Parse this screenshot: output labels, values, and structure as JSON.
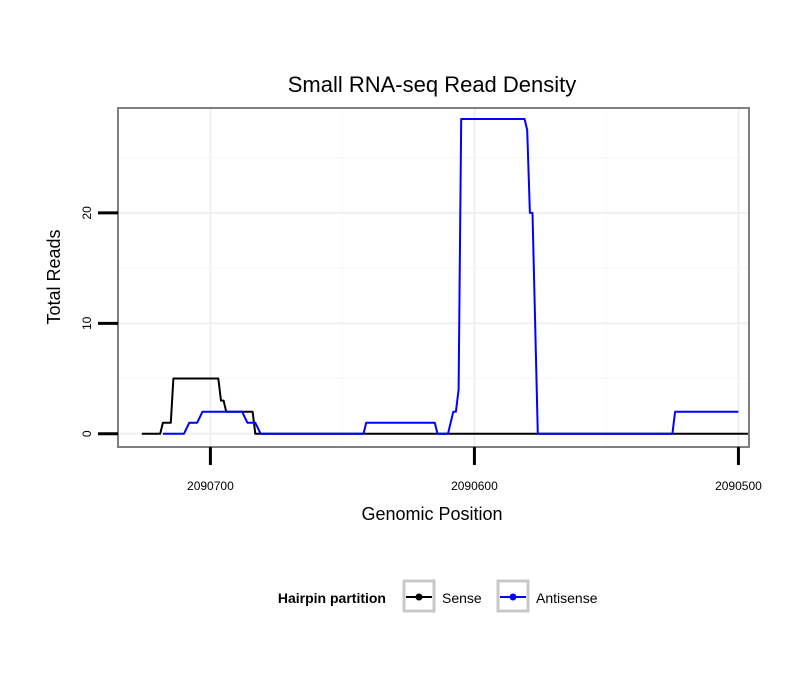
{
  "chart_data": {
    "type": "line",
    "title": "Small RNA-seq Read Density",
    "xlabel": "Genomic Position",
    "ylabel": "Total Reads",
    "x_reversed": true,
    "xlim": [
      2090735,
      2090496
    ],
    "ylim": [
      -1.2,
      29.5
    ],
    "x_ticks": [
      2090700,
      2090600,
      2090500
    ],
    "x_tick_labels": [
      "2090700",
      "2090600",
      "2090500"
    ],
    "y_ticks": [
      0,
      10,
      20
    ],
    "y_tick_labels": [
      "0",
      "10",
      "20"
    ],
    "grid": true,
    "legend": {
      "title": "Hairpin partition",
      "position": "bottom",
      "entries": [
        "Sense",
        "Antisense"
      ]
    },
    "series": [
      {
        "name": "Sense",
        "color": "#000000",
        "x": [
          2090726,
          2090719,
          2090718,
          2090715,
          2090714,
          2090710,
          2090709,
          2090697,
          2090696,
          2090695,
          2090694,
          2090690,
          2090689,
          2090684,
          2090683,
          2090580,
          2090496
        ],
        "y": [
          0,
          0,
          1,
          1,
          5,
          5,
          5,
          5,
          3,
          3,
          2,
          2,
          2,
          2,
          0,
          0,
          0
        ]
      },
      {
        "name": "Antisense",
        "color": "#0000ff",
        "x": [
          2090718,
          2090710,
          2090708,
          2090705,
          2090703,
          2090688,
          2090686,
          2090683,
          2090681,
          2090642,
          2090641,
          2090615,
          2090614,
          2090610,
          2090608,
          2090607,
          2090606,
          2090605,
          2090604,
          2090581,
          2090580,
          2090579,
          2090578,
          2090576,
          2090575,
          2090525,
          2090524,
          2090500
        ],
        "y": [
          0,
          0,
          1,
          1,
          2,
          2,
          1,
          1,
          0,
          0,
          1,
          1,
          0,
          0,
          2,
          2,
          4,
          28.5,
          28.5,
          28.5,
          27.5,
          20,
          20,
          0,
          0,
          0,
          2,
          2
        ]
      }
    ]
  }
}
